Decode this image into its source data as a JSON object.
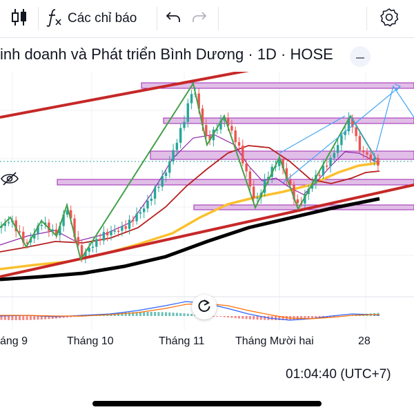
{
  "toolbar": {
    "indicators_label": "Các chỉ báo"
  },
  "symbol": {
    "title": "inh doanh và Phát triển Bình Dương · 1D · HOSE"
  },
  "time_axis": {
    "labels": [
      "áng 9",
      "Tháng 10",
      "Tháng 11",
      "Tháng Mười hai",
      "28"
    ]
  },
  "status": {
    "clock": "01:04:40 (UTC+7)"
  },
  "icons": {
    "chart_type": "candlestick-icon",
    "indicators": "function-fx-icon",
    "undo": "undo-icon",
    "redo": "redo-icon",
    "settings": "gear-icon",
    "collapse": "minus-icon",
    "visibility": "eye-off-icon",
    "reset": "reset-chart-icon"
  },
  "colors": {
    "up_candle": "#26a69a",
    "down_candle": "#ef5350",
    "trend_channel": "#c62828",
    "zone_fill": "#e1bee7",
    "zone_border": "#9c27b0",
    "zigzag": "#43a047",
    "projection": "#42a5f5",
    "ma_fast": "#8e24aa",
    "ma_mid": "#b71c1c",
    "ma_slow": "#fbc02d",
    "ma_long": "#000000"
  }
}
